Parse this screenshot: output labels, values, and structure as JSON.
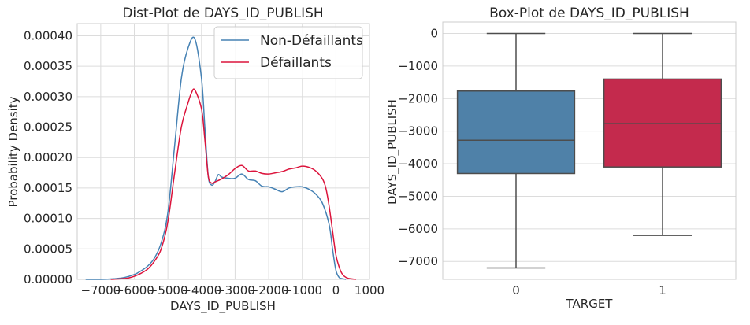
{
  "chart_data": [
    {
      "type": "line",
      "title": "Dist-Plot de DAYS_ID_PUBLISH",
      "xlabel": "DAYS_ID_PUBLISH",
      "ylabel": "Probability Density",
      "xlim": [
        -7700,
        1000
      ],
      "ylim": [
        0,
        0.00042
      ],
      "xticks": [
        -7000,
        -6000,
        -5000,
        -4000,
        -3000,
        -2000,
        -1000,
        0,
        1000
      ],
      "xtick_labels": [
        "−7000",
        "−6000",
        "−5000",
        "−4000",
        "−3000",
        "−2000",
        "−1000",
        "0",
        "1000"
      ],
      "yticks": [
        0,
        5e-05,
        0.0001,
        0.00015,
        0.0002,
        0.00025,
        0.0003,
        0.00035,
        0.0004
      ],
      "ytick_labels": [
        "0.00000",
        "0.00005",
        "0.00010",
        "0.00015",
        "0.00020",
        "0.00025",
        "0.00030",
        "0.00035",
        "0.00040"
      ],
      "grid": true,
      "legend_position": "top-right",
      "series": [
        {
          "name": "Non-Défaillants",
          "color": "#4682b4",
          "x": [
            -7450,
            -7000,
            -6600,
            -6300,
            -6000,
            -5800,
            -5600,
            -5400,
            -5200,
            -5000,
            -4800,
            -4600,
            -4400,
            -4200,
            -4000,
            -3900,
            -3800,
            -3700,
            -3600,
            -3500,
            -3400,
            -3200,
            -3000,
            -2800,
            -2600,
            -2400,
            -2200,
            -2000,
            -1800,
            -1600,
            -1400,
            -1200,
            -1000,
            -800,
            -600,
            -400,
            -200,
            -100,
            0,
            100,
            200,
            300
          ],
          "y": [
            0.0,
            0.0,
            1e-06,
            3e-06,
            8e-06,
            1.4e-05,
            2.2e-05,
            3.5e-05,
            6e-05,
            0.00011,
            0.00022,
            0.00033,
            0.00038,
            0.000395,
            0.00033,
            0.00025,
            0.00017,
            0.000155,
            0.00016,
            0.000172,
            0.000168,
            0.000166,
            0.000166,
            0.000173,
            0.000164,
            0.000162,
            0.000153,
            0.000152,
            0.000148,
            0.000144,
            0.00015,
            0.000152,
            0.000152,
            0.000148,
            0.00014,
            0.000125,
            9e-05,
            5e-05,
            1.5e-05,
            3e-06,
            1e-06,
            0.0
          ]
        },
        {
          "name": "Défaillants",
          "color": "#dc143c",
          "x": [
            -6700,
            -6400,
            -6200,
            -6000,
            -5800,
            -5600,
            -5400,
            -5200,
            -5000,
            -4800,
            -4600,
            -4400,
            -4300,
            -4200,
            -4000,
            -3900,
            -3800,
            -3700,
            -3600,
            -3400,
            -3200,
            -3000,
            -2800,
            -2600,
            -2400,
            -2200,
            -2000,
            -1800,
            -1600,
            -1400,
            -1200,
            -1000,
            -800,
            -600,
            -400,
            -300,
            -200,
            -100,
            0,
            100,
            200,
            350,
            600
          ],
          "y": [
            0.0,
            1e-06,
            2e-06,
            5e-06,
            1e-05,
            1.7e-05,
            3e-05,
            5e-05,
            9.5e-05,
            0.000175,
            0.00025,
            0.00029,
            0.000306,
            0.000311,
            0.00028,
            0.00023,
            0.00017,
            0.000158,
            0.00016,
            0.000165,
            0.000172,
            0.000182,
            0.000187,
            0.000178,
            0.000178,
            0.000174,
            0.000173,
            0.000175,
            0.000177,
            0.000181,
            0.000183,
            0.000186,
            0.000184,
            0.000178,
            0.000165,
            0.00015,
            0.00012,
            8e-05,
            4e-05,
            2e-05,
            8e-06,
            2e-06,
            0.0
          ]
        }
      ]
    },
    {
      "type": "box",
      "title": "Box-Plot de DAYS_ID_PUBLISH",
      "xlabel": "TARGET",
      "ylabel": "DAYS_ID_PUBLISH",
      "ylim": [
        -7550,
        350
      ],
      "yticks": [
        0,
        -1000,
        -2000,
        -3000,
        -4000,
        -5000,
        -6000,
        -7000
      ],
      "ytick_labels": [
        "0",
        "−1000",
        "−2000",
        "−3000",
        "−4000",
        "−5000",
        "−6000",
        "−7000"
      ],
      "grid": true,
      "categories": [
        "0",
        "1"
      ],
      "boxes": [
        {
          "category": "0",
          "color": "#4f81a8",
          "whisker_low": -7200,
          "q1": -4300,
          "median": -3280,
          "q3": -1770,
          "whisker_high": 0
        },
        {
          "category": "1",
          "color": "#c42a4d",
          "whisker_low": -6200,
          "q1": -4100,
          "median": -2770,
          "q3": -1400,
          "whisker_high": 0
        }
      ]
    }
  ]
}
